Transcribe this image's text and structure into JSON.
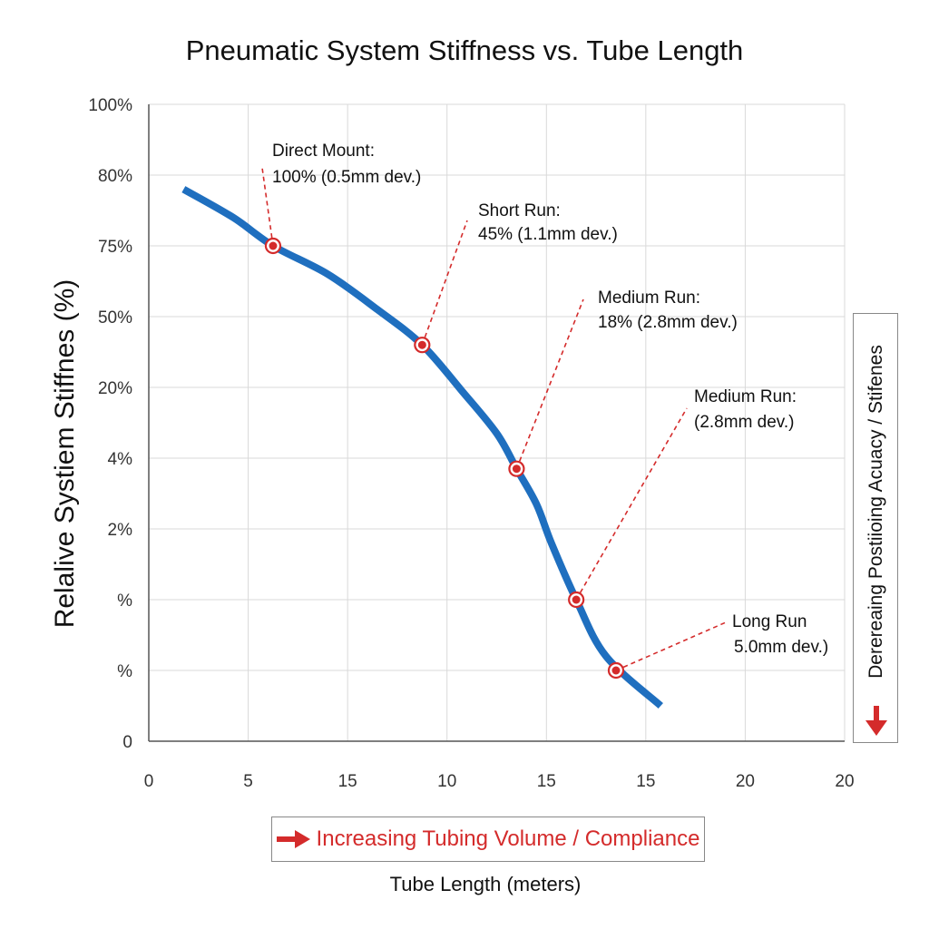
{
  "chart_data": {
    "type": "line",
    "title": "Pneumatic System Stiffness vs. Tube Length",
    "xlabel": "Tube Length (meters)",
    "ylabel": "Relalive Systiem Stiffnes (%)",
    "x_tick_labels": [
      "0",
      "5",
      "15",
      "10",
      "15",
      "15",
      "20",
      "20"
    ],
    "y_tick_labels": [
      "100%",
      "80%",
      "75%",
      "50%",
      "20%",
      "4%",
      "2%",
      "%",
      "%",
      "0"
    ],
    "grid": true,
    "series": [
      {
        "x": [
          0.7,
          1.7,
          2.5,
          3.6,
          4.6,
          5.5,
          6.3,
          7.0,
          7.4,
          7.8,
          8.1,
          8.6,
          9.2,
          10.3
        ],
        "y": [
          7.8,
          7.4,
          7.0,
          6.6,
          6.1,
          5.6,
          4.95,
          4.35,
          3.85,
          3.35,
          2.8,
          2.0,
          1.2,
          0.5
        ],
        "color": "#1f6fbf"
      }
    ],
    "markers": [
      {
        "x": 2.5,
        "y": 7.0,
        "label_line1": "Direct Mount:",
        "label_line2": "100% (0.5mm dev.)"
      },
      {
        "x": 5.5,
        "y": 5.6,
        "label_line1": "Short Run:",
        "label_line2": "45% (1.1mm dev.)"
      },
      {
        "x": 7.4,
        "y": 3.85,
        "label_line1": "Medium Run:",
        "label_line2": "18% (2.8mm dev.)"
      },
      {
        "x": 8.6,
        "y": 2.0,
        "label_line1": "Medium Run:",
        "label_line2": "(2.8mm dev.)"
      },
      {
        "x": 9.4,
        "y": 1.0,
        "label_line1": "Long Run",
        "label_line2": "5.0mm dev.)"
      }
    ],
    "xlim": [
      0,
      14
    ],
    "ylim": [
      0,
      9
    ],
    "marker_color": "#d42b2b"
  },
  "callouts": {
    "x_direction": "Increasing Tubing Volume / Compliance",
    "y_direction": "Derereaing Postiioing Acuacy / Stifenes",
    "arrow_color": "#d42b2b"
  }
}
